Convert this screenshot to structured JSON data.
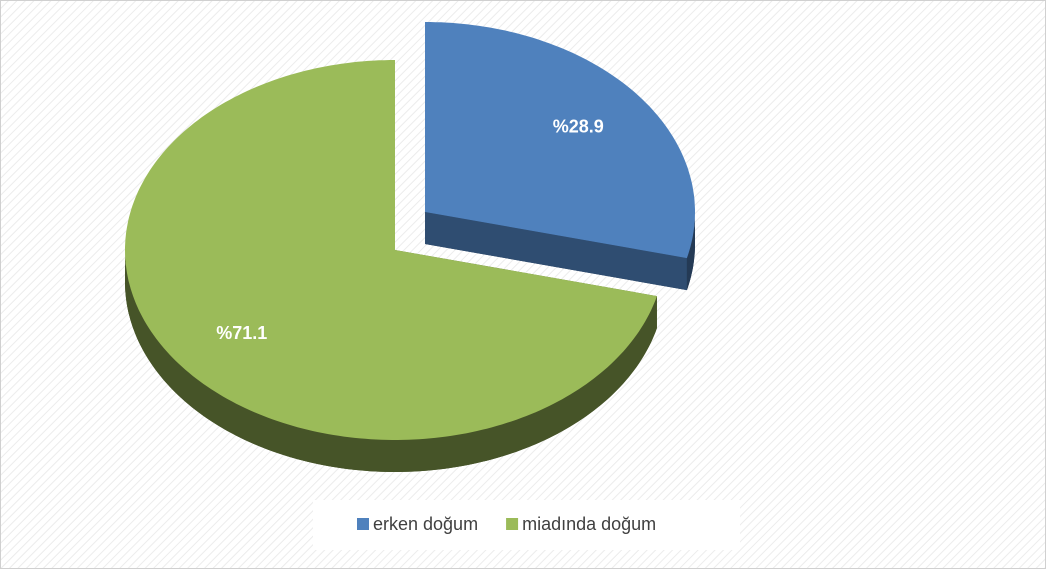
{
  "chart_data": {
    "type": "pie",
    "categories": [
      "erken doğum",
      "miadında doğum"
    ],
    "values": [
      28.9,
      71.1
    ],
    "value_labels": [
      "%28.9",
      "%71.1"
    ],
    "colors": [
      "#4f81bd",
      "#9bbb59"
    ],
    "legend": "bottom"
  }
}
